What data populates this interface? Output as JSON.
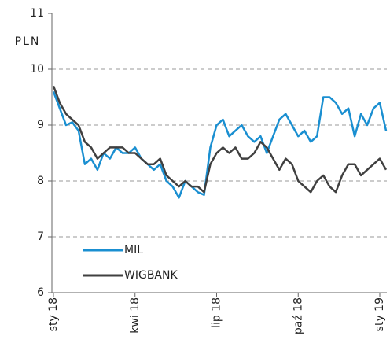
{
  "chart_data": {
    "type": "line",
    "y_label": "PLN",
    "categories": [
      "sty 18",
      null,
      null,
      null,
      null,
      null,
      null,
      null,
      null,
      null,
      null,
      null,
      null,
      "kwi 18",
      null,
      null,
      null,
      null,
      null,
      null,
      null,
      null,
      null,
      null,
      null,
      null,
      "lip 18",
      null,
      null,
      null,
      null,
      null,
      null,
      null,
      null,
      null,
      null,
      null,
      null,
      "paź 18",
      null,
      null,
      null,
      null,
      null,
      null,
      null,
      null,
      null,
      null,
      null,
      null,
      "sty 19",
      null
    ],
    "series": [
      {
        "name": "MIL",
        "color": "#1a8fd1",
        "values": [
          9.6,
          9.3,
          9.0,
          9.05,
          8.9,
          8.3,
          8.4,
          8.2,
          8.5,
          8.4,
          8.6,
          8.5,
          8.5,
          8.6,
          8.4,
          8.3,
          8.2,
          8.3,
          8.0,
          7.9,
          7.7,
          8.0,
          7.9,
          7.8,
          7.75,
          8.6,
          9.0,
          9.1,
          8.8,
          8.9,
          9.0,
          8.8,
          8.7,
          8.8,
          8.5,
          8.8,
          9.1,
          9.2,
          9.0,
          8.8,
          8.9,
          8.7,
          8.8,
          9.5,
          9.5,
          9.4,
          9.2,
          9.3,
          8.8,
          9.2,
          9.0,
          9.3,
          9.4,
          8.9
        ]
      },
      {
        "name": "WIGBANK",
        "color": "#404040",
        "values": [
          9.7,
          9.4,
          9.2,
          9.1,
          9.0,
          8.7,
          8.6,
          8.4,
          8.5,
          8.6,
          8.6,
          8.6,
          8.5,
          8.5,
          8.4,
          8.3,
          8.3,
          8.4,
          8.1,
          8.0,
          7.9,
          8.0,
          7.9,
          7.9,
          7.8,
          8.3,
          8.5,
          8.6,
          8.5,
          8.6,
          8.4,
          8.4,
          8.5,
          8.7,
          8.6,
          8.4,
          8.2,
          8.4,
          8.3,
          8.0,
          7.9,
          7.8,
          8.0,
          8.1,
          7.9,
          7.8,
          8.1,
          8.3,
          8.3,
          8.1,
          8.2,
          8.3,
          8.4,
          8.2
        ]
      }
    ],
    "ylim": [
      6,
      11
    ],
    "yticks": [
      6,
      7,
      8,
      9,
      10,
      11
    ],
    "grid": true
  }
}
